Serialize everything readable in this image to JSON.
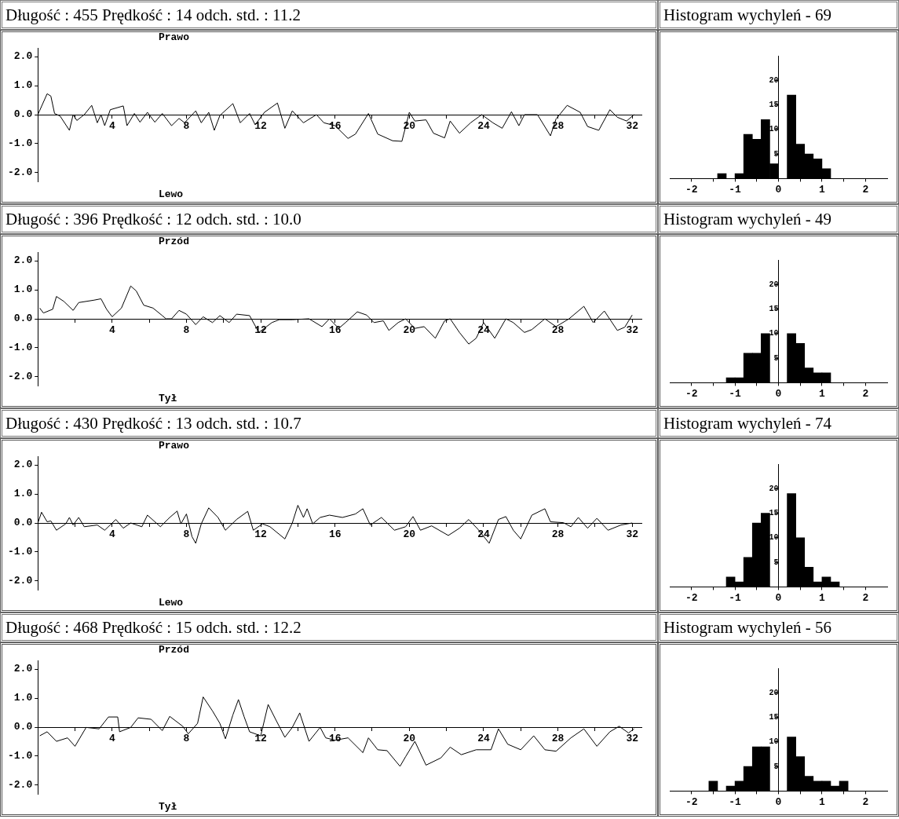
{
  "chart_data": [
    {
      "type": "line",
      "title": "Długość : 455 Prędkość : 14 odch. std. : 11.2",
      "annotations": [
        "Prawo",
        "Lewo"
      ],
      "xlim": [
        0,
        32.5
      ],
      "ylim": [
        -2.3,
        2.3
      ],
      "grid": false,
      "legend": false,
      "marker": "none",
      "xticks": [
        {
          "value": 2,
          "label": null
        },
        4,
        {
          "value": 6,
          "label": null
        },
        8,
        {
          "value": 10,
          "label": null
        },
        12,
        {
          "value": 14,
          "label": null
        },
        16,
        {
          "value": 18,
          "label": null
        },
        20,
        {
          "value": 22,
          "label": null
        },
        24,
        {
          "value": 26,
          "label": null
        },
        28,
        {
          "value": 30,
          "label": null
        },
        32
      ],
      "yticks": [
        {
          "value": -2,
          "label": "-2.0"
        },
        {
          "value": -1,
          "label": "-1.0"
        },
        {
          "value": 0,
          "label": "0.0"
        },
        {
          "value": 1,
          "label": "1.0"
        },
        {
          "value": 2,
          "label": "2.0"
        }
      ],
      "series": [
        {
          "color": "#000000",
          "x": [
            0,
            0.5,
            0.7,
            0.9,
            1.2,
            1.7,
            1.9,
            2.1,
            2.5,
            2.9,
            3.2,
            3.4,
            3.6,
            3.9,
            4.6,
            4.8,
            5.2,
            5.5,
            5.9,
            6.3,
            6.7,
            7.2,
            7.6,
            7.9,
            8.5,
            8.8,
            9.2,
            9.5,
            9.8,
            10.5,
            10.9,
            11.4,
            11.7,
            12.2,
            12.9,
            13.3,
            13.7,
            14.3,
            15,
            15.4,
            16,
            16.7,
            17.1,
            17.8,
            18.3,
            19.1,
            19.6,
            20,
            20.3,
            20.9,
            21.3,
            21.9,
            22.2,
            22.7,
            23.3,
            23.9,
            24.5,
            25,
            25.5,
            25.9,
            26.2,
            26.9,
            27.6,
            27.9,
            28.5,
            29.2,
            29.6,
            30.2,
            30.8,
            31.2,
            31.7,
            32.1
          ],
          "values": [
            0,
            0.72,
            0.64,
            0.04,
            -0.05,
            -0.54,
            0,
            -0.2,
            0,
            0.32,
            -0.28,
            0,
            -0.38,
            0.17,
            0.3,
            -0.38,
            0.04,
            -0.26,
            0.08,
            -0.26,
            0.04,
            -0.38,
            -0.13,
            -0.28,
            0.13,
            -0.28,
            0.08,
            -0.54,
            -0.03,
            0.38,
            -0.28,
            0.04,
            -0.35,
            0.08,
            0.4,
            -0.47,
            0.13,
            -0.28,
            0,
            -0.28,
            -0.38,
            -0.82,
            -0.67,
            0.04,
            -0.67,
            -0.9,
            -0.92,
            0.08,
            -0.22,
            -0.18,
            -0.64,
            -0.8,
            -0.22,
            -0.64,
            -0.28,
            0,
            -0.28,
            -0.47,
            0.1,
            -0.38,
            0,
            0,
            -0.73,
            -0.15,
            0.32,
            0.08,
            -0.41,
            -0.54,
            0.17,
            -0.09,
            -0.22,
            0
          ]
        }
      ]
    },
    {
      "type": "histogram",
      "title": "Histogram wychyleń - 69",
      "xlim": [
        -2.5,
        2.5
      ],
      "ylim": [
        0,
        25
      ],
      "grid": false,
      "legend": false,
      "color": "#000000",
      "xticks": [
        -2,
        {
          "value": -1.5,
          "label": null
        },
        -1,
        {
          "value": -0.5,
          "label": null
        },
        0,
        {
          "value": 0.5,
          "label": null
        },
        1,
        {
          "value": 1.5,
          "label": null
        },
        2
      ],
      "yticks": [
        5,
        10,
        15,
        20
      ],
      "bins": [
        -1.6,
        -1.4,
        -1.2,
        -1,
        -0.8,
        -0.6,
        -0.4,
        -0.2,
        0,
        0.2,
        0.4,
        0.6,
        0.8,
        1,
        1.2,
        1.4,
        1.6
      ],
      "values": [
        0,
        1,
        0,
        1,
        9,
        8,
        12,
        3,
        0,
        17,
        7,
        5,
        4,
        2,
        0,
        0
      ]
    },
    {
      "type": "line",
      "title": "Długość : 396 Prędkość : 12 odch. std. : 10.0",
      "annotations": [
        "Przód",
        "Tył"
      ],
      "xlim": [
        0,
        32.5
      ],
      "ylim": [
        -2.3,
        2.3
      ],
      "grid": false,
      "legend": false,
      "marker": "none",
      "xticks": [
        {
          "value": 2,
          "label": null
        },
        4,
        {
          "value": 6,
          "label": null
        },
        8,
        {
          "value": 10,
          "label": null
        },
        12,
        {
          "value": 14,
          "label": null
        },
        16,
        {
          "value": 18,
          "label": null
        },
        20,
        {
          "value": 22,
          "label": null
        },
        24,
        {
          "value": 26,
          "label": null
        },
        28,
        {
          "value": 30,
          "label": null
        },
        32
      ],
      "yticks": [
        {
          "value": -2,
          "label": "-2.0"
        },
        {
          "value": -1,
          "label": "-1.0"
        },
        {
          "value": 0,
          "label": "0.0"
        },
        {
          "value": 1,
          "label": "1.0"
        },
        {
          "value": 2,
          "label": "2.0"
        }
      ],
      "series": [
        {
          "color": "#000000",
          "x": [
            0.1,
            0.3,
            0.8,
            1,
            1.4,
            1.9,
            2.2,
            3,
            3.4,
            3.7,
            4,
            4.5,
            5,
            5.3,
            5.7,
            6.2,
            6.7,
            6.9,
            7.2,
            7.6,
            8,
            8.5,
            8.9,
            9.4,
            9.8,
            10.3,
            10.7,
            11.4,
            11.9,
            12.6,
            13,
            13.7,
            14.6,
            15.3,
            15.7,
            16.2,
            16.6,
            17.2,
            17.7,
            18.1,
            18.6,
            18.9,
            19.4,
            19.8,
            20.3,
            20.8,
            21.4,
            21.9,
            22.2,
            22.7,
            23.2,
            23.6,
            24,
            24.6,
            25.2,
            25.6,
            26.2,
            26.6,
            27.3,
            27.9,
            28.6,
            29.4,
            29.9,
            30.5,
            31.2,
            31.6,
            32
          ],
          "values": [
            0.37,
            0.2,
            0.33,
            0.77,
            0.6,
            0.29,
            0.56,
            0.64,
            0.69,
            0.33,
            0.07,
            0.37,
            1.13,
            0.96,
            0.47,
            0.37,
            0.11,
            0,
            0,
            0.29,
            0.16,
            -0.2,
            0.07,
            -0.13,
            0.11,
            -0.13,
            0.16,
            0.11,
            -0.47,
            -0.13,
            -0.03,
            -0.03,
            0,
            -0.27,
            0,
            -0.33,
            -0.11,
            0.24,
            0.13,
            -0.13,
            -0.07,
            -0.4,
            -0.13,
            0,
            -0.33,
            -0.27,
            -0.67,
            -0.07,
            0,
            -0.47,
            -0.87,
            -0.67,
            -0.13,
            -0.67,
            0,
            -0.13,
            -0.47,
            -0.37,
            0,
            -0.27,
            0,
            0.43,
            -0.13,
            0.27,
            -0.4,
            -0.29,
            0.13
          ]
        }
      ]
    },
    {
      "type": "histogram",
      "title": "Histogram wychyleń - 49",
      "xlim": [
        -2.5,
        2.5
      ],
      "ylim": [
        0,
        25
      ],
      "grid": false,
      "legend": false,
      "color": "#000000",
      "xticks": [
        -2,
        {
          "value": -1.5,
          "label": null
        },
        -1,
        {
          "value": -0.5,
          "label": null
        },
        0,
        {
          "value": 0.5,
          "label": null
        },
        1,
        {
          "value": 1.5,
          "label": null
        },
        2
      ],
      "yticks": [
        5,
        10,
        15,
        20
      ],
      "bins": [
        -1.6,
        -1.4,
        -1.2,
        -1,
        -0.8,
        -0.6,
        -0.4,
        -0.2,
        0,
        0.2,
        0.4,
        0.6,
        0.8,
        1,
        1.2,
        1.4,
        1.6
      ],
      "values": [
        0,
        0,
        1,
        1,
        6,
        6,
        10,
        0,
        0,
        10,
        8,
        3,
        2,
        2,
        0,
        0
      ]
    },
    {
      "type": "line",
      "title": "Długość : 430 Prędkość : 13 odch. std. : 10.7",
      "annotations": [
        "Prawo",
        "Lewo"
      ],
      "xlim": [
        0,
        32.5
      ],
      "ylim": [
        -2.3,
        2.3
      ],
      "grid": false,
      "legend": false,
      "marker": "none",
      "xticks": [
        {
          "value": 2,
          "label": null
        },
        4,
        {
          "value": 6,
          "label": null
        },
        8,
        {
          "value": 10,
          "label": null
        },
        12,
        {
          "value": 14,
          "label": null
        },
        16,
        {
          "value": 18,
          "label": null
        },
        20,
        {
          "value": 22,
          "label": null
        },
        24,
        {
          "value": 26,
          "label": null
        },
        28,
        {
          "value": 30,
          "label": null
        },
        32
      ],
      "yticks": [
        {
          "value": -2,
          "label": "-2.0"
        },
        {
          "value": -1,
          "label": "-1.0"
        },
        {
          "value": 0,
          "label": "0.0"
        },
        {
          "value": 1,
          "label": "1.0"
        },
        {
          "value": 2,
          "label": "2.0"
        }
      ],
      "series": [
        {
          "color": "#000000",
          "x": [
            0,
            0.2,
            0.5,
            0.7,
            1,
            1.5,
            1.7,
            1.9,
            2.2,
            2.5,
            3.2,
            3.6,
            4.2,
            4.6,
            5,
            5.6,
            5.9,
            6.6,
            7.1,
            7.5,
            7.7,
            8,
            8.3,
            8.5,
            8.8,
            9.2,
            9.7,
            10.1,
            10.7,
            11.3,
            11.6,
            12.1,
            12.5,
            13.3,
            13.7,
            14,
            14.3,
            14.5,
            14.8,
            15.2,
            15.7,
            16.4,
            17.1,
            17.5,
            17.9,
            18.5,
            19.2,
            19.8,
            20.2,
            20.6,
            21.2,
            22.1,
            22.7,
            23.2,
            23.7,
            24.3,
            24.8,
            25.2,
            25.6,
            26,
            26.6,
            27.3,
            27.6,
            28.3,
            28.7,
            29.1,
            29.6,
            30.1,
            30.7,
            31.4,
            32
          ],
          "values": [
            0,
            0.37,
            0.04,
            0.07,
            -0.25,
            -0.03,
            0.19,
            -0.07,
            0.19,
            -0.13,
            -0.07,
            -0.25,
            0.12,
            -0.18,
            0,
            -0.13,
            0.27,
            -0.13,
            0.19,
            0.41,
            -0.03,
            0.31,
            -0.47,
            -0.7,
            -0.03,
            0.52,
            0.19,
            -0.25,
            0.12,
            0.4,
            -0.25,
            -0.03,
            -0.13,
            -0.55,
            0,
            0.61,
            0.19,
            0.49,
            -0.03,
            0.19,
            0.27,
            0.19,
            0.31,
            0.49,
            -0.07,
            0.19,
            -0.25,
            -0.13,
            0.22,
            -0.25,
            -0.1,
            -0.43,
            -0.18,
            0.12,
            -0.22,
            -0.7,
            0.12,
            0.22,
            -0.25,
            -0.55,
            0.27,
            0.49,
            0.04,
            0.01,
            -0.13,
            0.19,
            -0.18,
            0.16,
            -0.25,
            -0.07,
            0
          ]
        }
      ]
    },
    {
      "type": "histogram",
      "title": "Histogram wychyleń - 74",
      "xlim": [
        -2.5,
        2.5
      ],
      "ylim": [
        0,
        25
      ],
      "grid": false,
      "legend": false,
      "color": "#000000",
      "xticks": [
        -2,
        {
          "value": -1.5,
          "label": null
        },
        -1,
        {
          "value": -0.5,
          "label": null
        },
        0,
        {
          "value": 0.5,
          "label": null
        },
        1,
        {
          "value": 1.5,
          "label": null
        },
        2
      ],
      "yticks": [
        5,
        10,
        15,
        20
      ],
      "bins": [
        -1.6,
        -1.4,
        -1.2,
        -1,
        -0.8,
        -0.6,
        -0.4,
        -0.2,
        0,
        0.2,
        0.4,
        0.6,
        0.8,
        1,
        1.2,
        1.4,
        1.6
      ],
      "values": [
        0,
        0,
        2,
        1,
        6,
        13,
        15,
        0,
        0,
        19,
        10,
        4,
        1,
        2,
        1,
        0
      ]
    },
    {
      "type": "line",
      "title": "Długość : 468 Prędkość : 15 odch. std. : 12.2",
      "annotations": [
        "Przód",
        "Tył"
      ],
      "xlim": [
        0,
        32.5
      ],
      "ylim": [
        -2.3,
        2.3
      ],
      "grid": false,
      "legend": false,
      "marker": "none",
      "xticks": [
        {
          "value": 2,
          "label": null
        },
        4,
        {
          "value": 6,
          "label": null
        },
        8,
        {
          "value": 10,
          "label": null
        },
        12,
        {
          "value": 14,
          "label": null
        },
        16,
        {
          "value": 18,
          "label": null
        },
        20,
        {
          "value": 22,
          "label": null
        },
        24,
        {
          "value": 26,
          "label": null
        },
        28,
        {
          "value": 30,
          "label": null
        },
        32
      ],
      "yticks": [
        {
          "value": -2,
          "label": "-2.0"
        },
        {
          "value": -1,
          "label": "-1.0"
        },
        {
          "value": 0,
          "label": "0.0"
        },
        {
          "value": 1,
          "label": "1.0"
        },
        {
          "value": 2,
          "label": "2.0"
        }
      ],
      "series": [
        {
          "color": "#000000",
          "x": [
            0.1,
            0.5,
            1,
            1.6,
            2,
            2.6,
            3.3,
            3.8,
            4.3,
            4.4,
            5,
            5.4,
            6.1,
            6.7,
            7.1,
            7.8,
            8.1,
            8.6,
            8.9,
            9.4,
            9.8,
            10.1,
            10.5,
            10.8,
            11.1,
            11.4,
            12,
            12.4,
            12.8,
            13.3,
            13.7,
            14.1,
            14.6,
            15.2,
            15.5,
            16,
            16.7,
            17.5,
            17.8,
            18.3,
            18.8,
            19.5,
            19.8,
            20.3,
            20.9,
            21.7,
            22.2,
            22.8,
            23.6,
            24.4,
            24.8,
            25.3,
            26,
            26.7,
            27.3,
            27.9,
            28.7,
            29.4,
            30.1,
            30.8,
            31.3,
            31.8,
            32.1
          ],
          "values": [
            -0.3,
            -0.16,
            -0.49,
            -0.37,
            -0.66,
            -0.01,
            -0.06,
            0.35,
            0.35,
            -0.16,
            -0.01,
            0.32,
            0.27,
            -0.12,
            0.37,
            0.03,
            -0.23,
            0.13,
            1.04,
            0.56,
            0.13,
            -0.4,
            0.42,
            0.95,
            0.37,
            -0.16,
            -0.3,
            0.78,
            0.27,
            -0.35,
            -0.01,
            0.49,
            -0.49,
            -0.01,
            -0.37,
            -0.45,
            -0.37,
            -0.88,
            -0.37,
            -0.78,
            -0.81,
            -1.35,
            -1.02,
            -0.49,
            -1.31,
            -1.06,
            -0.69,
            -0.95,
            -0.78,
            -0.78,
            -0.06,
            -0.59,
            -0.78,
            -0.3,
            -0.78,
            -0.83,
            -0.37,
            -0.06,
            -0.66,
            -0.16,
            0.03,
            -0.2,
            -0.06
          ]
        }
      ]
    },
    {
      "type": "histogram",
      "title": "Histogram wychyleń - 56",
      "xlim": [
        -2.5,
        2.5
      ],
      "ylim": [
        0,
        25
      ],
      "grid": false,
      "legend": false,
      "color": "#000000",
      "xticks": [
        -2,
        {
          "value": -1.5,
          "label": null
        },
        -1,
        {
          "value": -0.5,
          "label": null
        },
        0,
        {
          "value": 0.5,
          "label": null
        },
        1,
        {
          "value": 1.5,
          "label": null
        },
        2
      ],
      "yticks": [
        5,
        10,
        15,
        20
      ],
      "bins": [
        -1.6,
        -1.4,
        -1.2,
        -1,
        -0.8,
        -0.6,
        -0.4,
        -0.2,
        0,
        0.2,
        0.4,
        0.6,
        0.8,
        1,
        1.2,
        1.4,
        1.6
      ],
      "values": [
        2,
        0,
        1,
        2,
        5,
        9,
        9,
        0,
        0,
        11,
        7,
        3,
        2,
        2,
        1,
        2
      ]
    }
  ]
}
